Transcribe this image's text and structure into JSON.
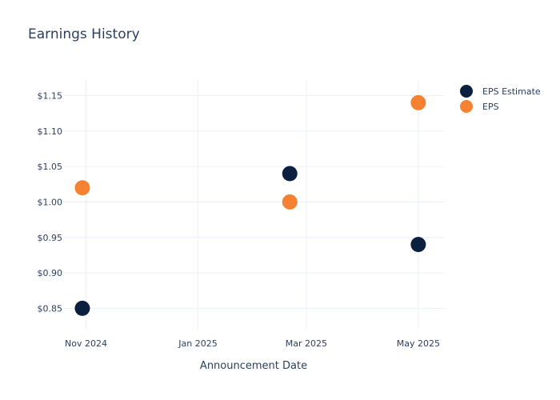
{
  "chart_data": {
    "type": "scatter",
    "title": "Earnings History",
    "xlabel": "Announcement Date",
    "ylabel": "",
    "x_ticks": [
      "Nov 2024",
      "Jan 2025",
      "Mar 2025",
      "May 2025"
    ],
    "y_ticks": [
      "$0.85",
      "$0.90",
      "$0.95",
      "$1.00",
      "$1.05",
      "$1.10",
      "$1.15"
    ],
    "xlim": [
      "2024-10-20",
      "2025-05-15"
    ],
    "ylim": [
      0.82,
      1.172
    ],
    "grid": true,
    "legend_position": "top-right",
    "series": [
      {
        "name": "EPS Estimate",
        "color": "#0b1f3f",
        "points": [
          {
            "x": "2024-10-30",
            "y": 0.85
          },
          {
            "x": "2025-02-20",
            "y": 1.04
          },
          {
            "x": "2025-05-01",
            "y": 0.94
          }
        ]
      },
      {
        "name": "EPS",
        "color": "#f58233",
        "points": [
          {
            "x": "2024-10-30",
            "y": 1.02
          },
          {
            "x": "2025-02-20",
            "y": 1.0
          },
          {
            "x": "2025-05-01",
            "y": 1.14
          }
        ]
      }
    ]
  }
}
